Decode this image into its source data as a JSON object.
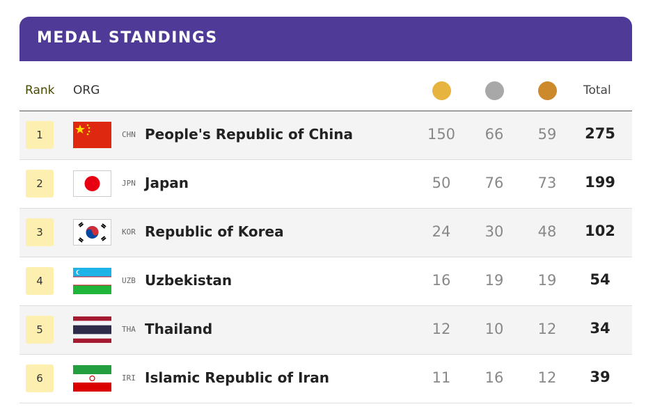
{
  "header": {
    "title": "MEDAL STANDINGS"
  },
  "columns": {
    "rank": "Rank",
    "org": "ORG",
    "total": "Total"
  },
  "rows": [
    {
      "rank": "1",
      "code": "CHN",
      "name": "People's Republic of China",
      "gold": 150,
      "silver": 66,
      "bronze": 59,
      "total": 275
    },
    {
      "rank": "2",
      "code": "JPN",
      "name": "Japan",
      "gold": 50,
      "silver": 76,
      "bronze": 73,
      "total": 199
    },
    {
      "rank": "3",
      "code": "KOR",
      "name": "Republic of Korea",
      "gold": 24,
      "silver": 30,
      "bronze": 48,
      "total": 102
    },
    {
      "rank": "4",
      "code": "UZB",
      "name": "Uzbekistan",
      "gold": 16,
      "silver": 19,
      "bronze": 19,
      "total": 54
    },
    {
      "rank": "5",
      "code": "THA",
      "name": "Thailand",
      "gold": 12,
      "silver": 10,
      "bronze": 12,
      "total": 34
    },
    {
      "rank": "6",
      "code": "IRI",
      "name": "Islamic Republic of Iran",
      "gold": 11,
      "silver": 16,
      "bronze": 12,
      "total": 39
    }
  ]
}
